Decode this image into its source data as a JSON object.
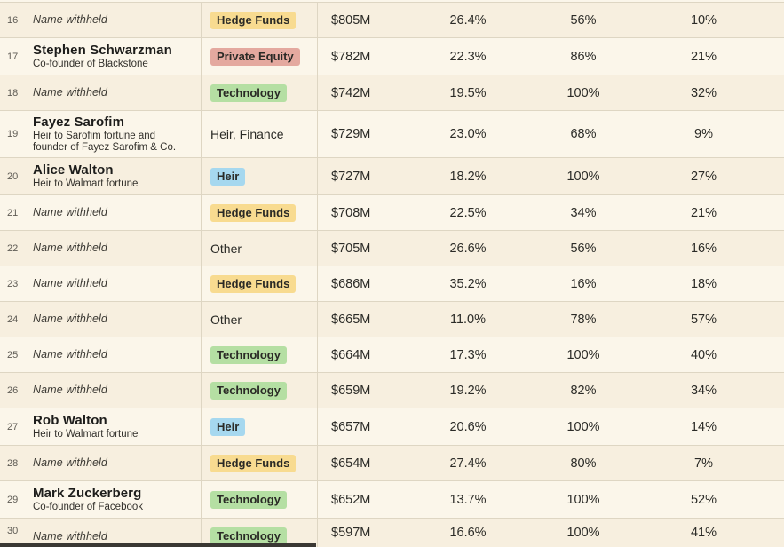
{
  "theme": {
    "row_bg_dark": "#f7efdf",
    "row_bg_light": "#fbf6ea",
    "border_color": "#ded6c3",
    "badge_colors": {
      "hedge-funds": "#f8db90",
      "private-equity": "#e4a99f",
      "technology": "#b5dfa3",
      "heir": "#a6d8ef"
    },
    "scrollbar_thumb_color": "#3a3833"
  },
  "table": {
    "rows": [
      {
        "rank": "16",
        "name": "Name withheld",
        "withheld": true,
        "subtitle": "",
        "category": {
          "label": "Hedge Funds",
          "style": "hedge-funds"
        },
        "amount": "$805M",
        "pct1": "26.4%",
        "pct2": "56%",
        "pct3": "10%"
      },
      {
        "rank": "17",
        "name": "Stephen Schwarzman",
        "withheld": false,
        "subtitle": "Co-founder of Blackstone",
        "category": {
          "label": "Private Equity",
          "style": "private-equity"
        },
        "amount": "$782M",
        "pct1": "22.3%",
        "pct2": "86%",
        "pct3": "21%"
      },
      {
        "rank": "18",
        "name": "Name withheld",
        "withheld": true,
        "subtitle": "",
        "category": {
          "label": "Technology",
          "style": "technology"
        },
        "amount": "$742M",
        "pct1": "19.5%",
        "pct2": "100%",
        "pct3": "32%"
      },
      {
        "rank": "19",
        "name": "Fayez Sarofim",
        "withheld": false,
        "subtitle": "Heir to Sarofim fortune and founder of Fayez Sarofim & Co.",
        "category": {
          "label": "Heir, Finance",
          "style": "plain"
        },
        "amount": "$729M",
        "pct1": "23.0%",
        "pct2": "68%",
        "pct3": "9%"
      },
      {
        "rank": "20",
        "name": "Alice Walton",
        "withheld": false,
        "subtitle": "Heir to Walmart fortune",
        "category": {
          "label": "Heir",
          "style": "heir"
        },
        "amount": "$727M",
        "pct1": "18.2%",
        "pct2": "100%",
        "pct3": "27%"
      },
      {
        "rank": "21",
        "name": "Name withheld",
        "withheld": true,
        "subtitle": "",
        "category": {
          "label": "Hedge Funds",
          "style": "hedge-funds"
        },
        "amount": "$708M",
        "pct1": "22.5%",
        "pct2": "34%",
        "pct3": "21%"
      },
      {
        "rank": "22",
        "name": "Name withheld",
        "withheld": true,
        "subtitle": "",
        "category": {
          "label": "Other",
          "style": "plain"
        },
        "amount": "$705M",
        "pct1": "26.6%",
        "pct2": "56%",
        "pct3": "16%"
      },
      {
        "rank": "23",
        "name": "Name withheld",
        "withheld": true,
        "subtitle": "",
        "category": {
          "label": "Hedge Funds",
          "style": "hedge-funds"
        },
        "amount": "$686M",
        "pct1": "35.2%",
        "pct2": "16%",
        "pct3": "18%"
      },
      {
        "rank": "24",
        "name": "Name withheld",
        "withheld": true,
        "subtitle": "",
        "category": {
          "label": "Other",
          "style": "plain"
        },
        "amount": "$665M",
        "pct1": "11.0%",
        "pct2": "78%",
        "pct3": "57%"
      },
      {
        "rank": "25",
        "name": "Name withheld",
        "withheld": true,
        "subtitle": "",
        "category": {
          "label": "Technology",
          "style": "technology"
        },
        "amount": "$664M",
        "pct1": "17.3%",
        "pct2": "100%",
        "pct3": "40%"
      },
      {
        "rank": "26",
        "name": "Name withheld",
        "withheld": true,
        "subtitle": "",
        "category": {
          "label": "Technology",
          "style": "technology"
        },
        "amount": "$659M",
        "pct1": "19.2%",
        "pct2": "82%",
        "pct3": "34%"
      },
      {
        "rank": "27",
        "name": "Rob Walton",
        "withheld": false,
        "subtitle": "Heir to Walmart fortune",
        "category": {
          "label": "Heir",
          "style": "heir"
        },
        "amount": "$657M",
        "pct1": "20.6%",
        "pct2": "100%",
        "pct3": "14%"
      },
      {
        "rank": "28",
        "name": "Name withheld",
        "withheld": true,
        "subtitle": "",
        "category": {
          "label": "Hedge Funds",
          "style": "hedge-funds"
        },
        "amount": "$654M",
        "pct1": "27.4%",
        "pct2": "80%",
        "pct3": "7%"
      },
      {
        "rank": "29",
        "name": "Mark Zuckerberg",
        "withheld": false,
        "subtitle": "Co-founder of Facebook",
        "category": {
          "label": "Technology",
          "style": "technology"
        },
        "amount": "$652M",
        "pct1": "13.7%",
        "pct2": "100%",
        "pct3": "52%"
      },
      {
        "rank": "30",
        "name": "Name withheld",
        "withheld": true,
        "subtitle": "",
        "category": {
          "label": "Technology",
          "style": "technology"
        },
        "amount": "$597M",
        "pct1": "16.6%",
        "pct2": "100%",
        "pct3": "41%"
      }
    ]
  }
}
